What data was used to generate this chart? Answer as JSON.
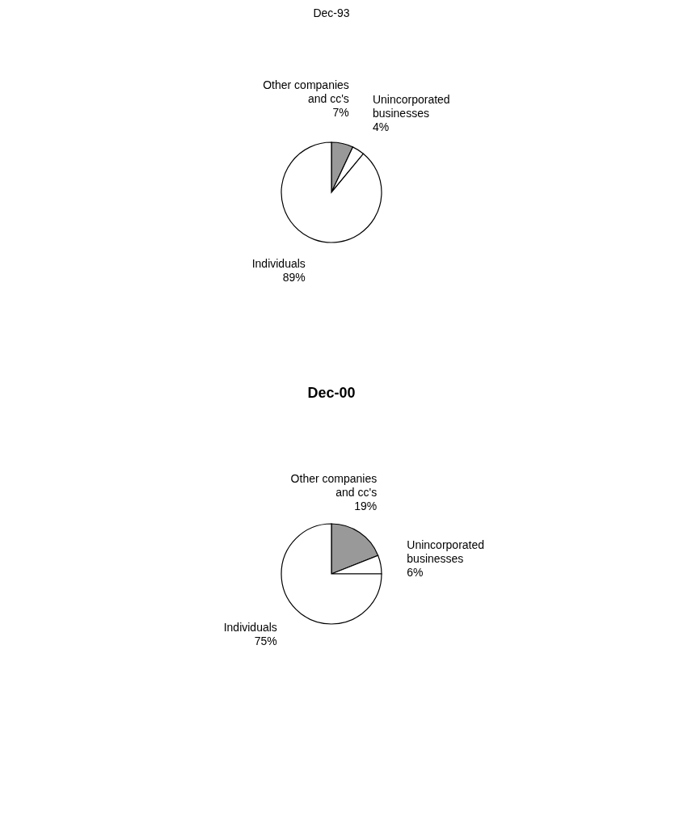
{
  "chart_data": [
    {
      "type": "pie",
      "title": "Dec-93",
      "categories": [
        "Other companies and cc's",
        "Unincorporated businesses",
        "Individuals"
      ],
      "values": [
        7,
        4,
        89
      ],
      "colors": [
        "#999999",
        "#ffffff",
        "#ffffff"
      ],
      "value_labels": [
        "7%",
        "4%",
        "89%"
      ]
    },
    {
      "type": "pie",
      "title": "Dec-00",
      "categories": [
        "Other companies and cc's",
        "Unincorporated businesses",
        "Individuals"
      ],
      "values": [
        19,
        6,
        75
      ],
      "colors": [
        "#999999",
        "#ffffff",
        "#ffffff"
      ],
      "value_labels": [
        "19%",
        "6%",
        "75%"
      ]
    }
  ]
}
